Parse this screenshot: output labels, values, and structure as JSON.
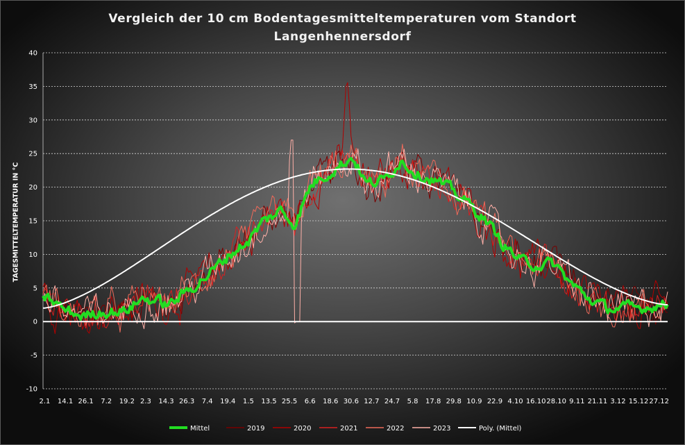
{
  "title_line1": "Vergleich  der 10 cm Bodentagesmitteltemperaturen  vom Standort",
  "title_line2": "Langenhennersdorf",
  "chart_data": {
    "type": "line",
    "title": "Vergleich  der 10 cm Bodentagesmitteltemperaturen  vom Standort Langenhennersdorf",
    "xlabel": "",
    "ylabel": "TAGESMITTELTEMPERATUR IN °C",
    "ylim": [
      -10,
      40
    ],
    "y_ticks": [
      -10,
      -5,
      0,
      5,
      10,
      15,
      20,
      25,
      30,
      35,
      40
    ],
    "grid": true,
    "legend_position": "bottom",
    "x_tick_labels": [
      "2.1",
      "14.1",
      "26.1",
      "7.2",
      "19.2",
      "2.3",
      "14.3",
      "26.3",
      "7.4",
      "19.4",
      "1.5",
      "13.5",
      "25.5",
      "6.6",
      "18.6",
      "30.6",
      "12.7",
      "24.7",
      "5.8",
      "17.8",
      "29.8",
      "10.9",
      "22.9",
      "4.10",
      "16.10",
      "28.10",
      "9.11",
      "21.11",
      "3.12",
      "15.12",
      "27.12"
    ],
    "x_tick_day_of_year": [
      2,
      14,
      26,
      38,
      50,
      61,
      73,
      85,
      97,
      109,
      121,
      133,
      145,
      157,
      169,
      181,
      193,
      205,
      217,
      229,
      241,
      253,
      265,
      277,
      289,
      301,
      313,
      325,
      337,
      349,
      361
    ],
    "x_range_day_of_year": [
      1,
      366
    ],
    "mittel_anchor_day_of_year": [
      1,
      15,
      25,
      35,
      48,
      60,
      75,
      90,
      100,
      110,
      121,
      130,
      140,
      148,
      158,
      170,
      182,
      190,
      200,
      210,
      220,
      230,
      240,
      250,
      260,
      270,
      280,
      290,
      300,
      310,
      320,
      330,
      340,
      350,
      360,
      366
    ],
    "mittel_anchor_values": [
      4.0,
      1.5,
      0.8,
      1.5,
      1.5,
      3.5,
      2.5,
      5.5,
      7.5,
      10.0,
      12.0,
      15.0,
      16.5,
      14.5,
      20.5,
      22.5,
      24.5,
      20.5,
      21.0,
      24.0,
      22.0,
      21.0,
      19.5,
      17.5,
      15.0,
      11.5,
      9.0,
      8.5,
      8.5,
      5.5,
      3.5,
      2.0,
      2.0,
      2.0,
      2.5,
      2.5
    ],
    "poly_fit_endpoints": {
      "start": 2.0,
      "peak": 22.7,
      "end": 2.5
    },
    "series": [
      {
        "name": "Mittel",
        "color": "#22dd22",
        "width": 4
      },
      {
        "name": "2019",
        "color": "#7a0000",
        "width": 1
      },
      {
        "name": "2020",
        "color": "#b00000",
        "width": 1
      },
      {
        "name": "2021",
        "color": "#d82020",
        "width": 1
      },
      {
        "name": "2022",
        "color": "#ee6a5a",
        "width": 1
      },
      {
        "name": "2023",
        "color": "#ffb0a8",
        "width": 1
      },
      {
        "name": "Poly. (Mittel)",
        "color": "#ffffff",
        "width": 2
      }
    ]
  }
}
